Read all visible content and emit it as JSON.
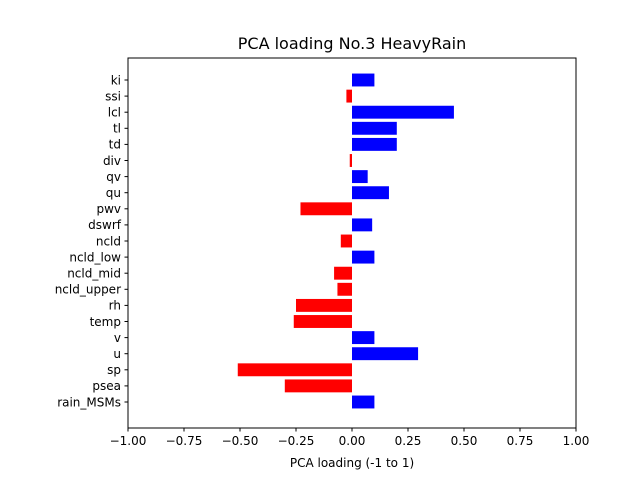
{
  "chart_data": {
    "type": "bar",
    "orientation": "horizontal",
    "title": "PCA loading No.3 HeavyRain",
    "xlabel": "PCA loading (-1 to 1)",
    "ylabel": "",
    "xlim": [
      -1.0,
      1.0
    ],
    "xticks": [
      "−1.00",
      "−0.75",
      "−0.50",
      "−0.25",
      "0.00",
      "0.25",
      "0.50",
      "0.75",
      "1.00"
    ],
    "xtick_values": [
      -1.0,
      -0.75,
      -0.5,
      -0.25,
      0.0,
      0.25,
      0.5,
      0.75,
      1.0
    ],
    "grid": false,
    "positive_color": "#0000ff",
    "negative_color": "#ff0000",
    "categories": [
      "ki",
      "ssi",
      "lcl",
      "tl",
      "td",
      "div",
      "qv",
      "qu",
      "pwv",
      "dswrf",
      "ncld",
      "ncld_low",
      "ncld_mid",
      "ncld_upper",
      "rh",
      "temp",
      "v",
      "u",
      "sp",
      "psea",
      "rain_MSMs"
    ],
    "values": [
      0.1,
      -0.025,
      0.455,
      0.2,
      0.2,
      -0.01,
      0.07,
      0.165,
      -0.23,
      0.09,
      -0.05,
      0.1,
      -0.08,
      -0.065,
      -0.25,
      -0.26,
      0.1,
      0.295,
      -0.51,
      -0.3,
      0.1
    ]
  }
}
